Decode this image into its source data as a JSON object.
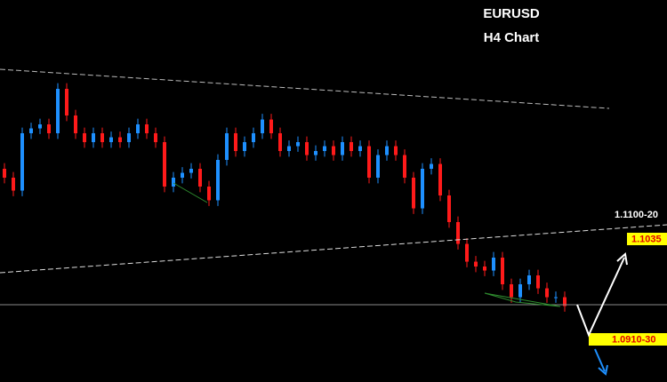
{
  "chart_data": {
    "type": "candlestick",
    "title": "EURUSD",
    "subtitle": "H4 Chart",
    "annotations": [
      "1.1100-20",
      "1.1035",
      "1.0910-30"
    ],
    "up_color": "#1e90ff",
    "down_color": "#ff1a1a",
    "ylim": [
      1.0856,
      1.1329
    ],
    "open": [
      1.112,
      1.1109,
      1.1093,
      1.1164,
      1.117,
      1.1175,
      1.1164,
      1.1219,
      1.1186,
      1.1164,
      1.1153,
      1.1164,
      1.1153,
      1.1159,
      1.1153,
      1.1164,
      1.1175,
      1.1164,
      1.1153,
      1.1098,
      1.1109,
      1.1115,
      1.112,
      1.1098,
      1.1081,
      1.1131,
      1.1164,
      1.1142,
      1.1153,
      1.1164,
      1.1181,
      1.1164,
      1.1142,
      1.1148,
      1.1153,
      1.1137,
      1.1142,
      1.1148,
      1.1137,
      1.1153,
      1.1142,
      1.1148,
      1.1109,
      1.1137,
      1.1148,
      1.1137,
      1.1109,
      1.1071,
      1.112,
      1.1126,
      1.1087,
      1.1054,
      1.1027,
      1.1005,
      1.0999,
      1.0994,
      1.101,
      1.0977,
      1.0961,
      1.0977,
      1.0988,
      1.0972,
      1.0961,
      1.0961
    ],
    "high": [
      1.1127,
      1.1116,
      1.1171,
      1.1177,
      1.1182,
      1.1182,
      1.1226,
      1.1226,
      1.1193,
      1.1171,
      1.1171,
      1.1171,
      1.1166,
      1.1166,
      1.1171,
      1.1182,
      1.1182,
      1.1171,
      1.116,
      1.1116,
      1.1122,
      1.1127,
      1.1127,
      1.1105,
      1.1138,
      1.1171,
      1.1171,
      1.116,
      1.1171,
      1.1188,
      1.1188,
      1.1171,
      1.1155,
      1.116,
      1.116,
      1.1149,
      1.1155,
      1.1155,
      1.116,
      1.116,
      1.1155,
      1.1155,
      1.1144,
      1.1155,
      1.1155,
      1.1144,
      1.1116,
      1.1127,
      1.1133,
      1.1133,
      1.1094,
      1.1061,
      1.1034,
      1.1012,
      1.1006,
      1.1017,
      1.1017,
      1.0984,
      1.0984,
      1.0995,
      1.0995,
      1.0979,
      1.0968,
      1.0968
    ],
    "low": [
      1.1102,
      1.1086,
      1.1086,
      1.1157,
      1.1163,
      1.1157,
      1.1157,
      1.1179,
      1.1157,
      1.1146,
      1.1146,
      1.1146,
      1.1146,
      1.1146,
      1.1146,
      1.1157,
      1.1157,
      1.1146,
      1.1091,
      1.1091,
      1.1102,
      1.1108,
      1.1091,
      1.1074,
      1.1074,
      1.1124,
      1.1135,
      1.1135,
      1.1146,
      1.1157,
      1.1157,
      1.1135,
      1.1135,
      1.1141,
      1.113,
      1.113,
      1.1135,
      1.113,
      1.113,
      1.1135,
      1.1135,
      1.1102,
      1.1102,
      1.113,
      1.113,
      1.1102,
      1.1064,
      1.1064,
      1.1113,
      1.108,
      1.1047,
      1.102,
      1.0998,
      1.0992,
      1.0987,
      1.0987,
      1.097,
      1.0954,
      1.0954,
      1.097,
      1.0965,
      1.0954,
      1.0954,
      1.0943
    ],
    "close": [
      1.1109,
      1.1093,
      1.1164,
      1.117,
      1.1175,
      1.1164,
      1.1219,
      1.1186,
      1.1164,
      1.1153,
      1.1164,
      1.1153,
      1.1159,
      1.1153,
      1.1164,
      1.1175,
      1.1164,
      1.1153,
      1.1098,
      1.1109,
      1.1115,
      1.112,
      1.1098,
      1.1081,
      1.1131,
      1.1164,
      1.1142,
      1.1153,
      1.1164,
      1.1181,
      1.1164,
      1.1142,
      1.1148,
      1.1153,
      1.1137,
      1.1142,
      1.1148,
      1.1137,
      1.1153,
      1.1142,
      1.1148,
      1.1109,
      1.1137,
      1.1148,
      1.1137,
      1.1109,
      1.1071,
      1.112,
      1.1126,
      1.1087,
      1.1054,
      1.1027,
      1.1005,
      1.0999,
      1.0994,
      1.101,
      1.0977,
      1.0961,
      1.0977,
      1.0988,
      1.0972,
      1.0961,
      1.0961,
      1.095
    ]
  }
}
